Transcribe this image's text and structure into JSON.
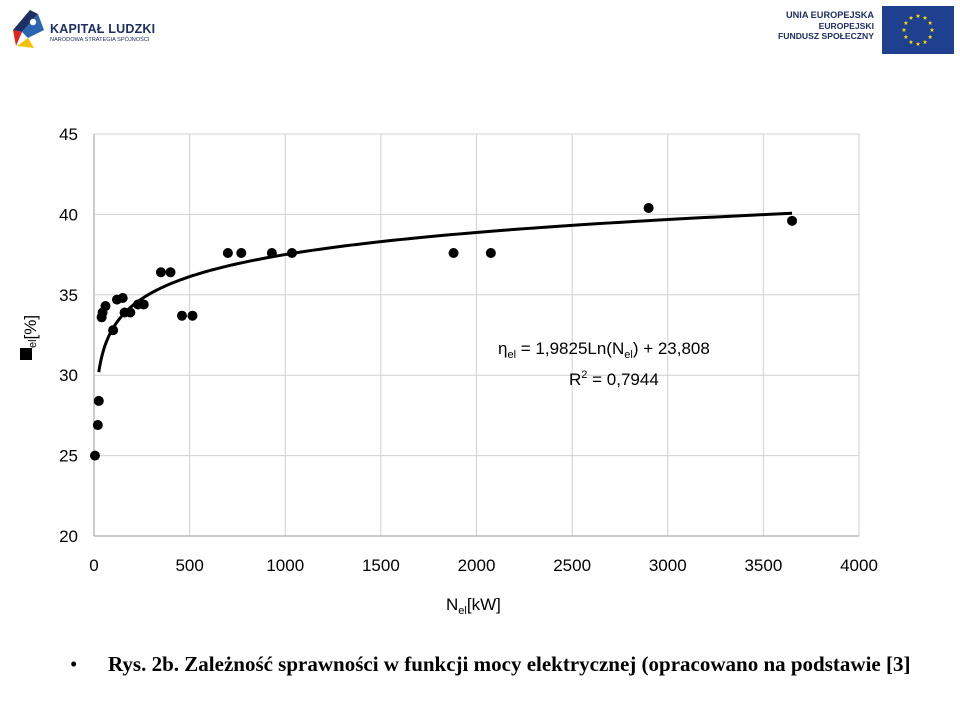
{
  "header": {
    "left_logo": {
      "title": "KAPITAŁ LUDZKI",
      "subtitle": "NARODOWA STRATEGIA SPÓJNOŚCI"
    },
    "right_logo": {
      "line1": "UNIA EUROPEJSKA",
      "line2": "EUROPEJSKI",
      "line3": "FUNDUSZ SPOŁECZNY",
      "flag_color": "#1f3f8f",
      "star_color": "#ffdd00"
    }
  },
  "chart_data": {
    "type": "scatter",
    "xlabel_main": "N",
    "xlabel_sub": "el",
    "xlabel_unit": "[kW]",
    "ylabel_sub": "el",
    "ylabel_unit": "[%]",
    "xlim": [
      0,
      4000
    ],
    "ylim": [
      20,
      45
    ],
    "x_ticks": [
      "0",
      "500",
      "1000",
      "1500",
      "2000",
      "2500",
      "3000",
      "3500",
      "4000"
    ],
    "y_ticks": [
      "20",
      "25",
      "30",
      "35",
      "40",
      "45"
    ],
    "grid": true,
    "points": [
      {
        "x": 5,
        "y": 25.0
      },
      {
        "x": 20,
        "y": 26.9
      },
      {
        "x": 25,
        "y": 28.4
      },
      {
        "x": 40,
        "y": 33.6
      },
      {
        "x": 45,
        "y": 33.9
      },
      {
        "x": 60,
        "y": 34.3
      },
      {
        "x": 100,
        "y": 32.8
      },
      {
        "x": 120,
        "y": 34.7
      },
      {
        "x": 150,
        "y": 34.8
      },
      {
        "x": 160,
        "y": 33.9
      },
      {
        "x": 190,
        "y": 33.9
      },
      {
        "x": 230,
        "y": 34.4
      },
      {
        "x": 260,
        "y": 34.4
      },
      {
        "x": 350,
        "y": 36.4
      },
      {
        "x": 400,
        "y": 36.4
      },
      {
        "x": 460,
        "y": 33.7
      },
      {
        "x": 515,
        "y": 33.7
      },
      {
        "x": 700,
        "y": 37.6
      },
      {
        "x": 770,
        "y": 37.6
      },
      {
        "x": 930,
        "y": 37.6
      },
      {
        "x": 1035,
        "y": 37.6
      },
      {
        "x": 1880,
        "y": 37.6
      },
      {
        "x": 2075,
        "y": 37.6
      },
      {
        "x": 2900,
        "y": 40.4
      },
      {
        "x": 3650,
        "y": 39.6
      }
    ],
    "trendline": {
      "type": "logarithmic",
      "a": 1.9825,
      "b": 23.808,
      "x_from": 25,
      "x_to": 3650
    },
    "equation": {
      "eta": "η",
      "eta_sub": "el",
      "eq_part1": " = 1,9825Ln(N",
      "eq_sub": "el",
      "eq_part2": ") + 23,808",
      "r2_main": "R",
      "r2_sup": "2",
      "r2_rest": " = 0,7944"
    }
  },
  "caption": {
    "bullet": "•",
    "text": "Rys. 2b. Zależność sprawności w funkcji mocy elektrycznej (opracowano na podstawie [3]"
  }
}
